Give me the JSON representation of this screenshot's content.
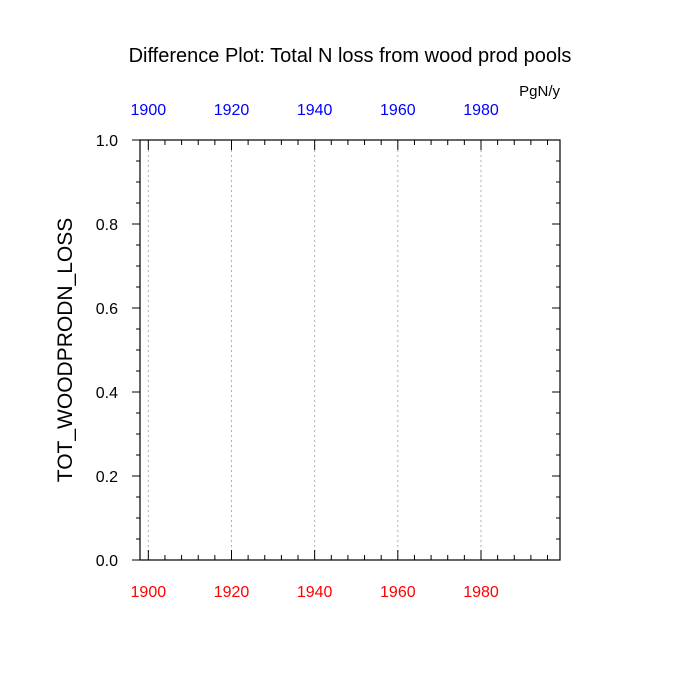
{
  "chart_data": {
    "type": "line",
    "title": "Difference Plot: Total N loss from wood prod pools",
    "units": "PgN/y",
    "ylabel": "TOT_WOODPRODN_LOSS",
    "xlim": [
      1898,
      1999
    ],
    "ylim": [
      0.0,
      1.0
    ],
    "x_ticks": [
      "1900",
      "1920",
      "1940",
      "1960",
      "1980"
    ],
    "x_tick_values": [
      1900,
      1920,
      1940,
      1960,
      1980
    ],
    "y_ticks": [
      "0.0",
      "0.2",
      "0.4",
      "0.6",
      "0.8",
      "1.0"
    ],
    "y_tick_values": [
      0.0,
      0.2,
      0.4,
      0.6,
      0.8,
      1.0
    ],
    "bottom_axis_color": "#ff0000",
    "top_axis_color": "#0000ff",
    "grid": "vertical dotted at major x ticks",
    "series": []
  }
}
